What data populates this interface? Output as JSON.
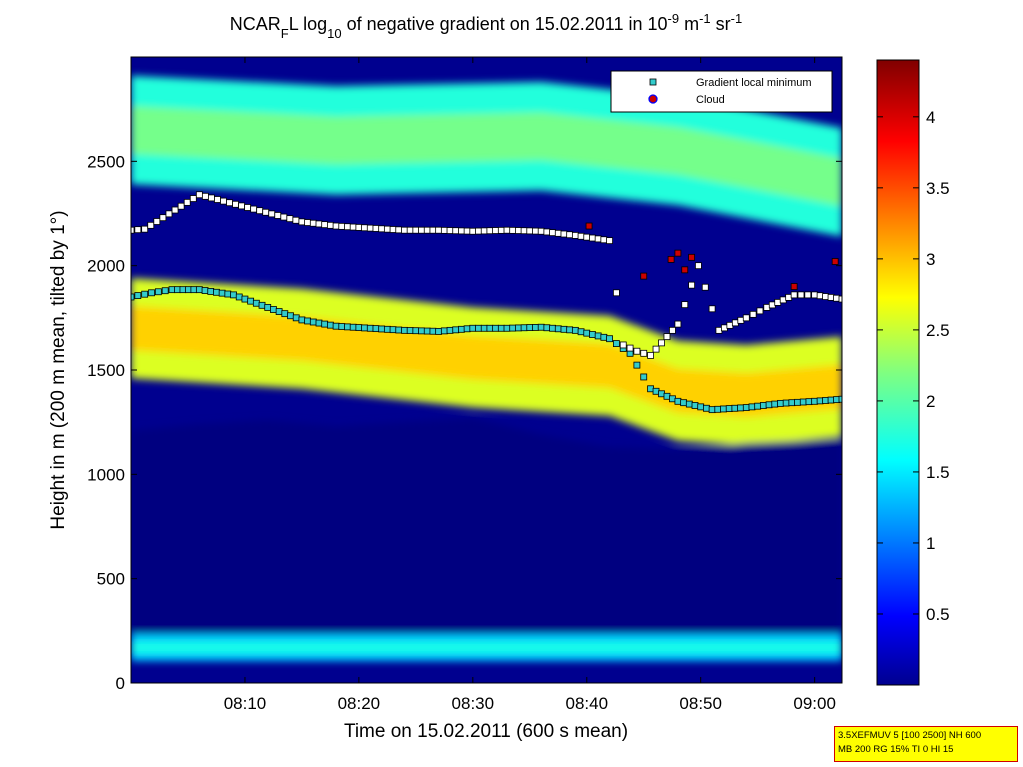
{
  "chart_data": {
    "type": "heatmap",
    "title": {
      "prefix": "NCAR",
      "prefix_sub": "F",
      "after_prefix": "L log",
      "log_sub": "10",
      "middle": " of negative gradient on 15.02.2011 in 10",
      "exp1": "-9",
      "unit1": " m",
      "exp2": "-1",
      "unit2": " sr",
      "exp3": "-1"
    },
    "xlabel": "Time on 15.02.2011 (600 s mean)",
    "ylabel": "Height in m (200 m mean, tilted by 1°)",
    "xlim": [
      8.0,
      9.04
    ],
    "ylim": [
      0,
      3000
    ],
    "xticks": [
      {
        "value": 8.1667,
        "label": "08:10"
      },
      {
        "value": 8.3333,
        "label": "08:20"
      },
      {
        "value": 8.5,
        "label": "08:30"
      },
      {
        "value": 8.6667,
        "label": "08:40"
      },
      {
        "value": 8.8333,
        "label": "08:50"
      },
      {
        "value": 9.0,
        "label": "09:00"
      }
    ],
    "yticks": [
      0,
      500,
      1000,
      1500,
      2000,
      2500
    ],
    "colorbar": {
      "range": [
        0,
        4.4
      ],
      "ticks": [
        "0.5",
        "1",
        "1.5",
        "2",
        "2.5",
        "3",
        "3.5",
        "4"
      ],
      "tick_values": [
        0.5,
        1,
        1.5,
        2,
        2.5,
        3,
        3.5,
        4
      ]
    },
    "legend": {
      "placement": "top-right",
      "entries": [
        {
          "label": "Gradient local minimum",
          "marker": "square",
          "color": "#33cccc"
        },
        {
          "label": "Cloud",
          "marker": "circle",
          "color": "#cc0000",
          "edge": "#0000ff"
        }
      ]
    },
    "layers": [
      {
        "name": "surface band",
        "center": [
          [
            8.0,
            170
          ],
          [
            9.04,
            170
          ]
        ],
        "thickness": 130,
        "value": 1.4
      },
      {
        "name": "lower strong layer",
        "center": [
          [
            8.0,
            1700
          ],
          [
            8.25,
            1650
          ],
          [
            8.5,
            1560
          ],
          [
            8.7,
            1520
          ],
          [
            8.8,
            1400
          ],
          [
            8.9,
            1380
          ],
          [
            9.04,
            1420
          ]
        ],
        "thickness": 480,
        "value": 2.6
      },
      {
        "name": "upper layer",
        "center": [
          [
            8.0,
            2650
          ],
          [
            8.3,
            2600
          ],
          [
            8.6,
            2620
          ],
          [
            8.8,
            2550
          ],
          [
            9.04,
            2400
          ]
        ],
        "thickness": 520,
        "value": 1.8
      }
    ],
    "boundary_top_of_dark_region": [
      [
        8.0,
        1210
      ],
      [
        8.1,
        1240
      ],
      [
        8.2,
        1260
      ],
      [
        8.3,
        1230
      ],
      [
        8.4,
        1250
      ],
      [
        8.5,
        1270
      ],
      [
        8.6,
        1190
      ],
      [
        8.7,
        1130
      ],
      [
        8.8,
        1120
      ],
      [
        8.9,
        1150
      ],
      [
        9.04,
        1170
      ]
    ],
    "series": [
      {
        "name": "Gradient local minimum (lower)",
        "points": [
          [
            8.0,
            1850
          ],
          [
            8.03,
            1870
          ],
          [
            8.06,
            1885
          ],
          [
            8.1,
            1885
          ],
          [
            8.15,
            1860
          ],
          [
            8.2,
            1800
          ],
          [
            8.25,
            1740
          ],
          [
            8.3,
            1710
          ],
          [
            8.35,
            1700
          ],
          [
            8.4,
            1690
          ],
          [
            8.45,
            1685
          ],
          [
            8.5,
            1700
          ],
          [
            8.55,
            1700
          ],
          [
            8.6,
            1705
          ],
          [
            8.65,
            1690
          ],
          [
            8.7,
            1650
          ],
          [
            8.73,
            1580
          ],
          [
            8.76,
            1410
          ],
          [
            8.8,
            1350
          ],
          [
            8.85,
            1310
          ],
          [
            8.9,
            1320
          ],
          [
            8.95,
            1340
          ],
          [
            9.0,
            1350
          ],
          [
            9.04,
            1360
          ]
        ]
      },
      {
        "name": "Gradient local minimum (upper, white)",
        "points": [
          [
            8.0,
            2170
          ],
          [
            8.02,
            2175
          ],
          [
            8.1,
            2340
          ],
          [
            8.25,
            2210
          ],
          [
            8.3,
            2190
          ],
          [
            8.35,
            2180
          ],
          [
            8.4,
            2170
          ],
          [
            8.45,
            2170
          ],
          [
            8.5,
            2165
          ],
          [
            8.55,
            2170
          ],
          [
            8.6,
            2165
          ],
          [
            8.65,
            2145
          ],
          [
            8.7,
            2120
          ],
          [
            8.72,
            1620
          ],
          [
            8.74,
            1590
          ],
          [
            8.76,
            1570
          ],
          [
            8.8,
            1720
          ],
          [
            8.83,
            2000
          ],
          [
            8.86,
            1690
          ],
          [
            8.9,
            1750
          ],
          [
            8.93,
            1800
          ],
          [
            8.97,
            1860
          ],
          [
            9.0,
            1860
          ],
          [
            9.04,
            1840
          ]
        ]
      },
      {
        "name": "Cloud",
        "points": [
          [
            8.67,
            2190
          ],
          [
            8.75,
            1950
          ],
          [
            8.79,
            2030
          ],
          [
            8.8,
            2060
          ],
          [
            8.81,
            1980
          ],
          [
            8.82,
            2040
          ],
          [
            8.97,
            1900
          ],
          [
            9.03,
            2020
          ]
        ]
      }
    ]
  },
  "annotation_box": {
    "line1": "3.5XEFMUV 5 [100 2500] NH 600",
    "line2": "MB 200 RG 15% TI 0 HI 15"
  }
}
